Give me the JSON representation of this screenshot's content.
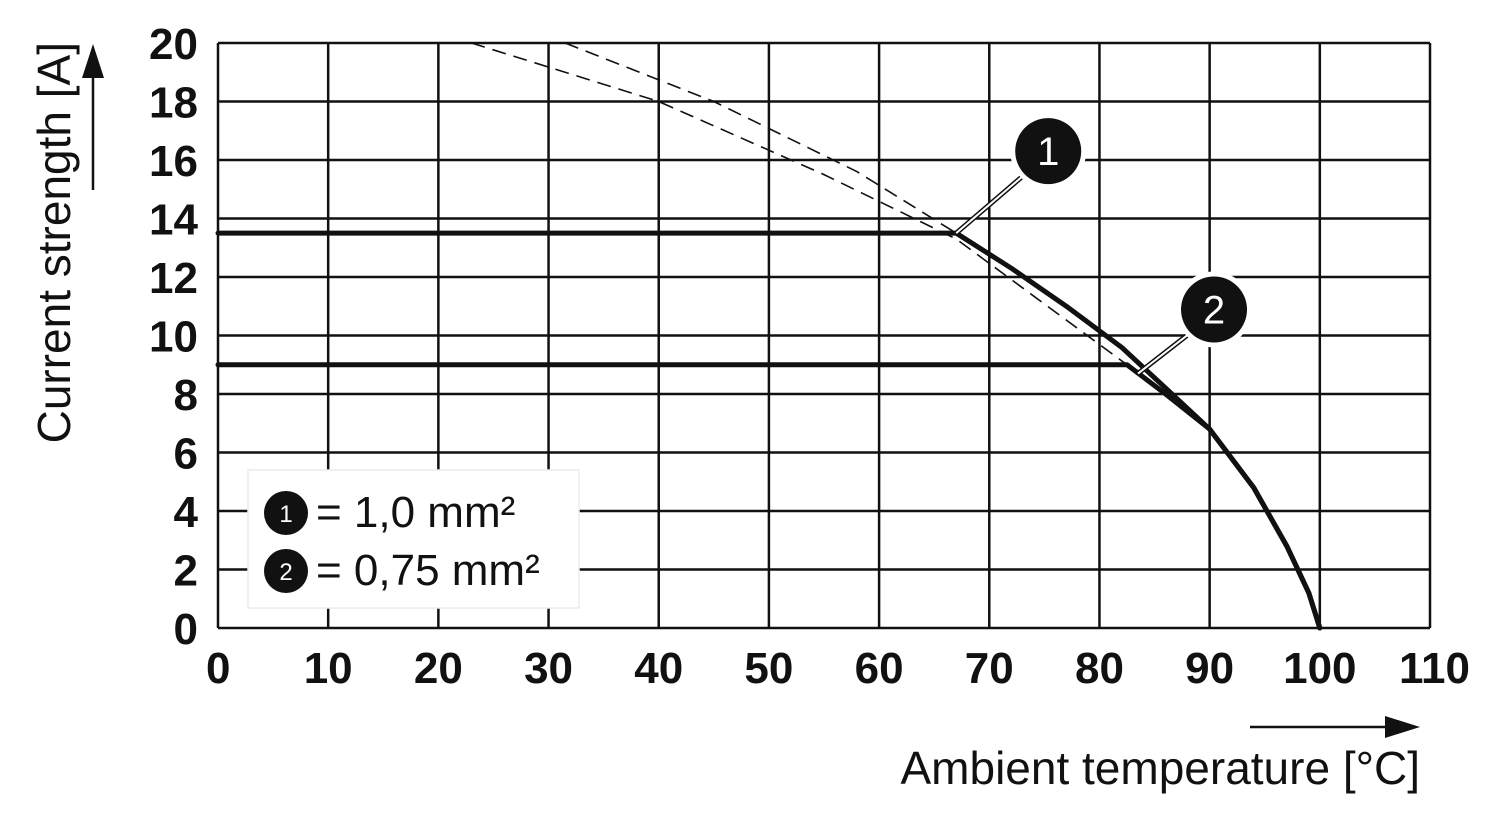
{
  "chart_data": {
    "type": "line",
    "title": "",
    "xlabel": "Ambient temperature [°C]",
    "ylabel": "Current strength [A]",
    "xlim": [
      0,
      110
    ],
    "ylim": [
      0,
      20
    ],
    "xticks": [
      0,
      10,
      20,
      30,
      40,
      50,
      60,
      70,
      80,
      90,
      100,
      110
    ],
    "yticks": [
      0,
      2,
      4,
      6,
      8,
      10,
      12,
      14,
      16,
      18,
      20
    ],
    "grid": true,
    "legend_position": "bottom-left",
    "series": [
      {
        "marker": "1",
        "label": "= 1,0 mm²",
        "style": "solid",
        "x": [
          0,
          67,
          72,
          77,
          82,
          86,
          90,
          94,
          97,
          99,
          100
        ],
        "y": [
          13.5,
          13.5,
          12.3,
          11.0,
          9.6,
          8.2,
          6.8,
          4.8,
          2.8,
          1.2,
          0
        ]
      },
      {
        "marker": "2",
        "label": "= 0,75 mm²",
        "style": "solid",
        "x": [
          0,
          82.5,
          86,
          90,
          94,
          97,
          99,
          100
        ],
        "y": [
          9.0,
          9.0,
          8.0,
          6.8,
          4.8,
          2.8,
          1.2,
          0
        ]
      },
      {
        "marker": "",
        "label": "",
        "style": "dashed",
        "x": [
          23,
          40,
          55,
          67,
          82.5
        ],
        "y": [
          20,
          18.0,
          15.5,
          13.3,
          9.0
        ]
      },
      {
        "marker": "",
        "label": "",
        "style": "dashed",
        "x": [
          31.5,
          45,
          58,
          67
        ],
        "y": [
          20,
          18.0,
          15.6,
          13.5
        ]
      }
    ],
    "callouts": [
      {
        "marker": "1",
        "at": [
          67,
          13.5
        ]
      },
      {
        "marker": "2",
        "at": [
          83.5,
          8.7
        ]
      }
    ]
  }
}
